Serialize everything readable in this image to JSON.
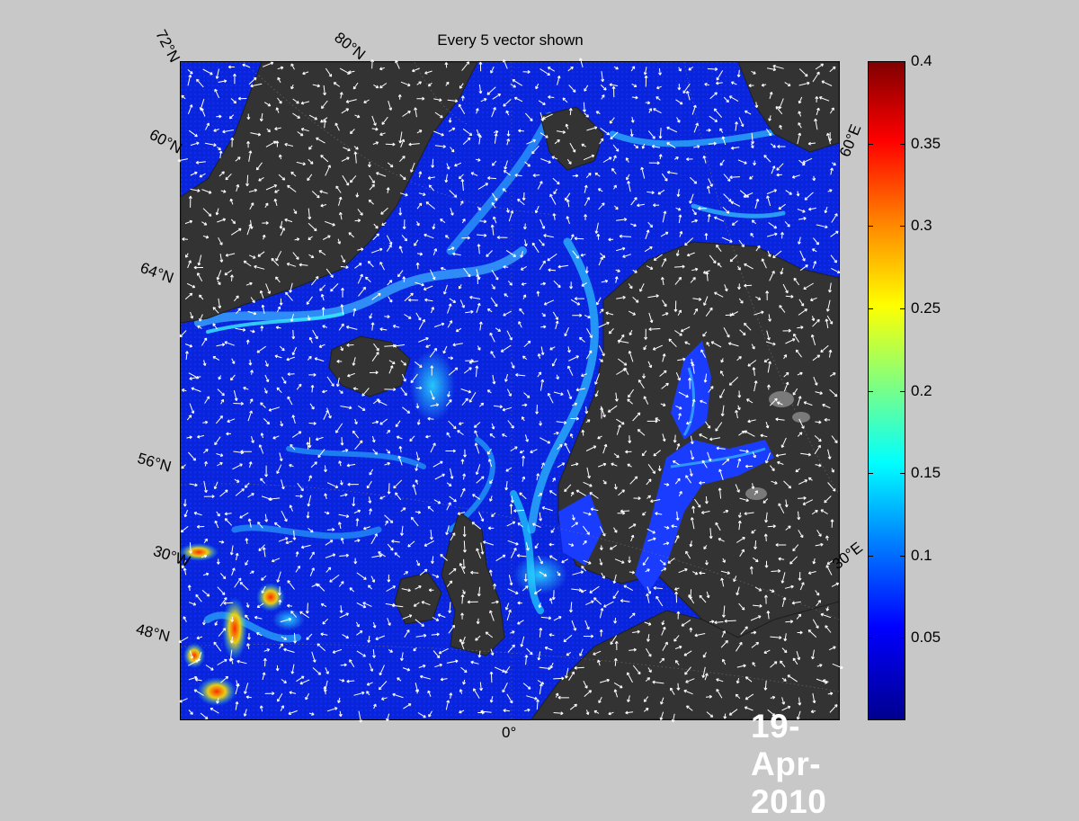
{
  "figure": {
    "title": "Every 5 vector shown",
    "date": "19-Apr-2010"
  },
  "map": {
    "lat_labels": [
      "72°N",
      "60°N",
      "64°N",
      "56°N",
      "48°N"
    ],
    "lon_labels": [
      "80°N",
      "30°W",
      "0°",
      "30°E",
      "60°E"
    ],
    "land_color": "#333333",
    "ocean_base_color": "#0a28e6"
  },
  "colorbar": {
    "ticks": [
      "0.4",
      "0.35",
      "0.3",
      "0.25",
      "0.2",
      "0.15",
      "0.1",
      "0.05"
    ],
    "values": [
      0.4,
      0.35,
      0.3,
      0.25,
      0.2,
      0.15,
      0.1,
      0.05
    ],
    "min": 0,
    "max": 0.4,
    "colormap": "jet"
  }
}
